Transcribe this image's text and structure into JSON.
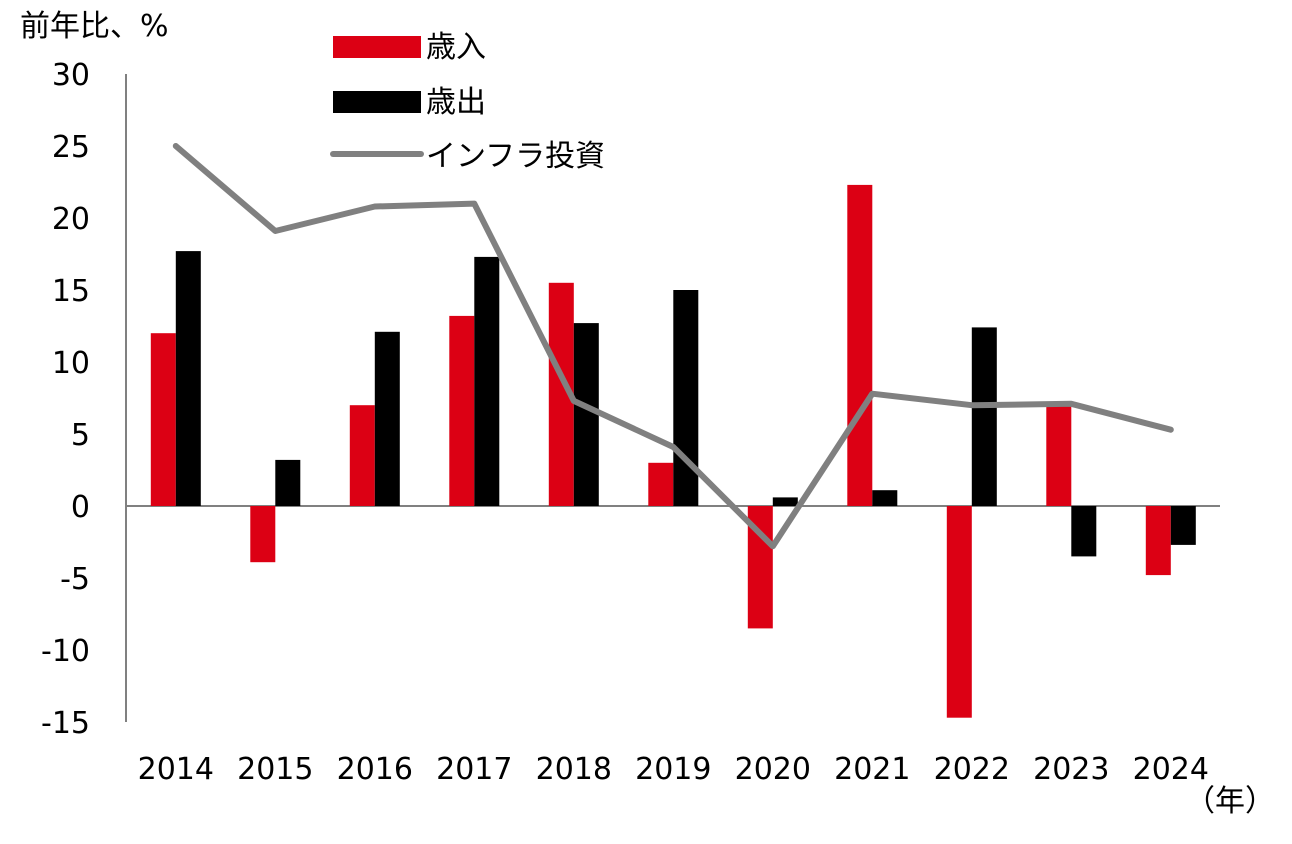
{
  "chart_data": {
    "type": "bar",
    "ylabel": "前年比、%",
    "xlabel": "（年）",
    "ylim": [
      -15,
      30
    ],
    "yticks": [
      30,
      25,
      20,
      15,
      10,
      5,
      0,
      -5,
      -10,
      -15
    ],
    "ytick_labels": [
      "30",
      "25",
      "20",
      "15",
      "10",
      "5",
      "0",
      "-5",
      "-10",
      "-15"
    ],
    "categories": [
      "2014",
      "2015",
      "2016",
      "2017",
      "2018",
      "2019",
      "2020",
      "2021",
      "2022",
      "2023",
      "2024"
    ],
    "series": [
      {
        "name": "歳入",
        "kind": "bar",
        "color": "#dc0014",
        "values": [
          12.0,
          -3.9,
          7.0,
          13.2,
          15.5,
          3.0,
          -8.5,
          22.3,
          -14.7,
          7.1,
          -4.8
        ]
      },
      {
        "name": "歳出",
        "kind": "bar",
        "color": "#000000",
        "values": [
          17.7,
          3.2,
          12.1,
          17.3,
          12.7,
          15.0,
          0.6,
          1.1,
          12.4,
          -3.5,
          -2.7
        ]
      },
      {
        "name": "インフラ投資",
        "kind": "line",
        "color": "#808080",
        "values": [
          25.0,
          19.1,
          20.8,
          21.0,
          7.3,
          4.1,
          -2.8,
          7.8,
          7.0,
          7.1,
          5.3
        ]
      }
    ],
    "legend": "top-center"
  }
}
